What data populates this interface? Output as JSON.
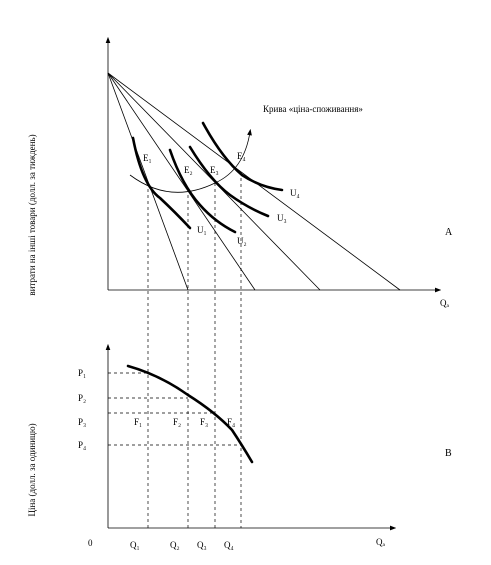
{
  "panel_a": {
    "y_label": "витрати на інші товари (долл. за тиждень)",
    "x_label": "Qₐ",
    "curve_label": "Крива «ціна-споживання»",
    "panel_label": "A",
    "equilibria": [
      "E₁",
      "E₂",
      "E₃",
      "E₄"
    ],
    "utilities": [
      "U₁",
      "U₂",
      "U₃",
      "U₄"
    ]
  },
  "panel_b": {
    "y_label": "Ціна (долл. за одиницю)",
    "x_label": "Qₐ",
    "origin": "0",
    "panel_label": "B",
    "prices": [
      "P₁",
      "P₂",
      "P₃",
      "P₄"
    ],
    "points": [
      "F₁",
      "F₂",
      "F₃",
      "F₄"
    ],
    "quantities": [
      "Q₁",
      "Q₂",
      "Q₃",
      "Q₄"
    ]
  }
}
